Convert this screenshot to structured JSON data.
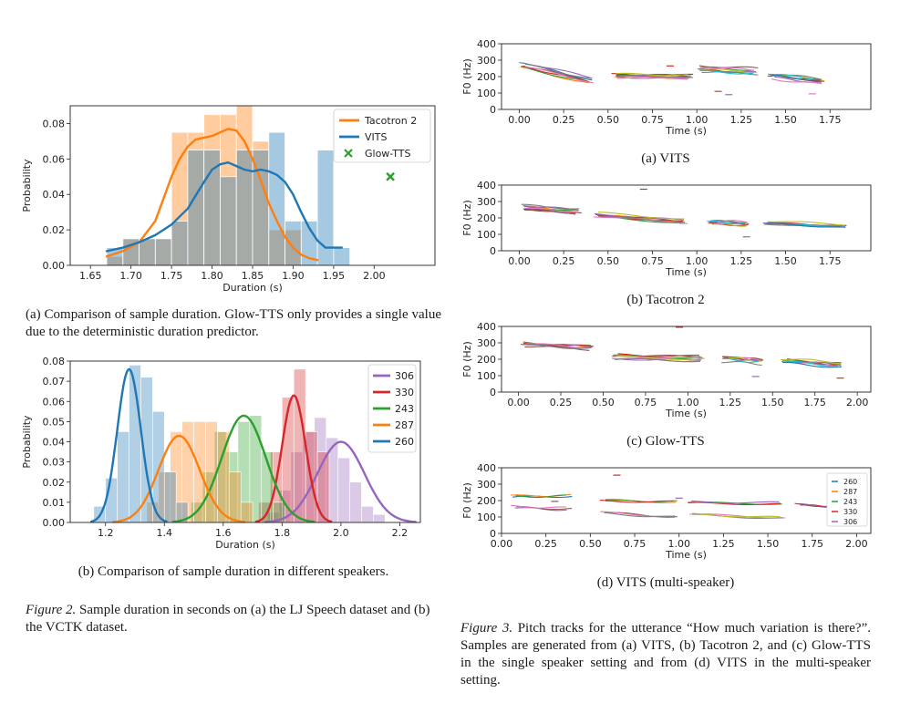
{
  "captions": {
    "fig2a": "(a) Comparison of sample duration.  Glow-TTS only provides a single value due to the deterministic duration predictor.",
    "fig2b": "(b) Comparison of sample duration in different speakers.",
    "fig2_label": "Figure 2.",
    "fig2_text": " Sample duration in seconds on (a) the LJ Speech dataset and (b) the VCTK dataset.",
    "fig3a": "(a) VITS",
    "fig3b": "(b) Tacotron 2",
    "fig3c": "(c) Glow-TTS",
    "fig3d": "(d) VITS (multi-speaker)",
    "fig3_label": "Figure 3.",
    "fig3_text": " Pitch tracks for the utterance “How much variation is there?”. Samples are generated from (a) VITS, (b) Tacotron 2, and (c) Glow-TTS in the single speaker setting and from (d) VITS in the multi-speaker setting."
  },
  "chart_data": [
    {
      "id": "fig2a",
      "type": "bar",
      "xlabel": "Duration (s)",
      "ylabel": "Probability",
      "xlim": [
        1.625,
        2.075
      ],
      "ylim": [
        0,
        0.09
      ],
      "xticks": [
        1.65,
        1.7,
        1.75,
        1.8,
        1.85,
        1.9,
        1.95,
        2.0
      ],
      "xtick_labels": [
        "1.65",
        "1.70",
        "1.75",
        "1.80",
        "1.85",
        "1.90",
        "1.95",
        "2.00"
      ],
      "yticks": [
        0,
        0.02,
        0.04,
        0.06,
        0.08
      ],
      "ytick_labels": [
        "0.00",
        "0.02",
        "0.04",
        "0.06",
        "0.08"
      ],
      "legend_position": "top-right",
      "bin_edges": [
        1.67,
        1.69,
        1.71,
        1.73,
        1.75,
        1.77,
        1.79,
        1.81,
        1.83,
        1.85,
        1.87,
        1.89,
        1.91,
        1.93,
        1.95,
        1.97
      ],
      "series": [
        {
          "name": "Tacotron 2",
          "color": "#ff7f0e",
          "hist": [
            0.005,
            0.015,
            0.015,
            0.015,
            0.075,
            0.075,
            0.085,
            0.085,
            0.09,
            0.07,
            0.02,
            0.02,
            0.0,
            0.0,
            0.0
          ],
          "kde_x": [
            1.67,
            1.69,
            1.71,
            1.73,
            1.75,
            1.76,
            1.77,
            1.78,
            1.79,
            1.8,
            1.81,
            1.82,
            1.83,
            1.84,
            1.85,
            1.86,
            1.87,
            1.88,
            1.89,
            1.9,
            1.91,
            1.92,
            1.93
          ],
          "kde_y": [
            0.005,
            0.008,
            0.013,
            0.025,
            0.05,
            0.06,
            0.067,
            0.071,
            0.072,
            0.073,
            0.075,
            0.077,
            0.076,
            0.07,
            0.06,
            0.048,
            0.035,
            0.025,
            0.016,
            0.01,
            0.006,
            0.004,
            0.003
          ]
        },
        {
          "name": "VITS",
          "color": "#1f77b4",
          "hist": [
            0.01,
            0.015,
            0.015,
            0.015,
            0.025,
            0.065,
            0.065,
            0.05,
            0.065,
            0.065,
            0.075,
            0.025,
            0.025,
            0.065,
            0.01
          ],
          "kde_x": [
            1.67,
            1.69,
            1.71,
            1.73,
            1.75,
            1.77,
            1.79,
            1.8,
            1.81,
            1.82,
            1.83,
            1.84,
            1.85,
            1.86,
            1.87,
            1.88,
            1.89,
            1.9,
            1.91,
            1.92,
            1.93,
            1.94,
            1.95,
            1.96
          ],
          "kde_y": [
            0.008,
            0.01,
            0.013,
            0.017,
            0.023,
            0.032,
            0.047,
            0.054,
            0.057,
            0.058,
            0.056,
            0.054,
            0.053,
            0.054,
            0.053,
            0.051,
            0.047,
            0.04,
            0.03,
            0.021,
            0.014,
            0.01,
            0.01,
            0.01
          ]
        },
        {
          "name": "Glow-TTS",
          "color": "#2ca02c",
          "marker": "x",
          "point": [
            2.02,
            0.05
          ]
        }
      ]
    },
    {
      "id": "fig2b",
      "type": "bar",
      "xlabel": "Duration (s)",
      "ylabel": "Probability",
      "xlim": [
        1.08,
        2.27
      ],
      "ylim": [
        0,
        0.08
      ],
      "xticks": [
        1.2,
        1.4,
        1.6,
        1.8,
        2.0,
        2.2
      ],
      "xtick_labels": [
        "1.2",
        "1.4",
        "1.6",
        "1.8",
        "2.0",
        "2.2"
      ],
      "yticks": [
        0,
        0.01,
        0.02,
        0.03,
        0.04,
        0.05,
        0.06,
        0.07,
        0.08
      ],
      "ytick_labels": [
        "0.00",
        "0.01",
        "0.02",
        "0.03",
        "0.04",
        "0.05",
        "0.06",
        "0.07",
        "0.08"
      ],
      "legend_position": "top-right",
      "series": [
        {
          "name": "306",
          "color": "#9467bd",
          "mean": 2.0,
          "sd": 0.08,
          "peak": 0.04,
          "hist_start": 1.75,
          "hist": [
            0.005,
            0.016,
            0.035,
            0.045,
            0.052,
            0.042,
            0.032,
            0.02,
            0.008,
            0.004
          ]
        },
        {
          "name": "330",
          "color": "#d62728",
          "mean": 1.84,
          "sd": 0.04,
          "peak": 0.063,
          "hist_start": 1.72,
          "hist": [
            0.01,
            0.035,
            0.062,
            0.076,
            0.045,
            0.035
          ]
        },
        {
          "name": "243",
          "color": "#2ca02c",
          "mean": 1.67,
          "sd": 0.075,
          "peak": 0.053,
          "hist_start": 1.49,
          "hist": [
            0.01,
            0.025,
            0.045,
            0.035,
            0.05,
            0.053,
            0.035,
            0.01
          ]
        },
        {
          "name": "287",
          "color": "#ff7f0e",
          "mean": 1.45,
          "sd": 0.07,
          "peak": 0.043,
          "hist_start": 1.34,
          "hist": [
            0.01,
            0.025,
            0.045,
            0.05,
            0.05,
            0.05,
            0.045,
            0.025,
            0.01
          ]
        },
        {
          "name": "260",
          "color": "#1f77b4",
          "mean": 1.28,
          "sd": 0.04,
          "peak": 0.076,
          "hist_start": 1.16,
          "hist": [
            0.008,
            0.022,
            0.045,
            0.078,
            0.072,
            0.055,
            0.025,
            0.01
          ]
        }
      ]
    },
    {
      "id": "fig3a",
      "type": "scatter",
      "xlabel": "Time (s)",
      "ylabel": "F0 (Hz)",
      "xlim": [
        -0.1,
        1.98
      ],
      "ylim": [
        0,
        400
      ],
      "xticks": [
        0,
        0.25,
        0.5,
        0.75,
        1.0,
        1.25,
        1.5,
        1.75
      ],
      "xtick_labels": [
        "0.00",
        "0.25",
        "0.50",
        "0.75",
        "1.00",
        "1.25",
        "1.50",
        "1.75"
      ],
      "yticks": [
        0,
        100,
        200,
        300,
        400
      ],
      "ytick_labels": [
        "0",
        "100",
        "200",
        "300",
        "400"
      ],
      "segments": [
        [
          0.0,
          0.42,
          270,
          175
        ],
        [
          0.52,
          0.98,
          200,
          195
        ],
        [
          1.0,
          1.35,
          250,
          235
        ],
        [
          1.4,
          1.72,
          200,
          170
        ]
      ]
    },
    {
      "id": "fig3b",
      "type": "scatter",
      "xlabel": "Time (s)",
      "ylabel": "F0 (Hz)",
      "xlim": [
        -0.1,
        1.98
      ],
      "ylim": [
        0,
        400
      ],
      "xticks": [
        0,
        0.25,
        0.5,
        0.75,
        1.0,
        1.25,
        1.5,
        1.75
      ],
      "xtick_labels": [
        "0.00",
        "0.25",
        "0.50",
        "0.75",
        "1.00",
        "1.25",
        "1.50",
        "1.75"
      ],
      "yticks": [
        0,
        100,
        200,
        300,
        400
      ],
      "ytick_labels": [
        "0",
        "100",
        "200",
        "300",
        "400"
      ],
      "segments": [
        [
          0.0,
          0.35,
          265,
          240
        ],
        [
          0.42,
          0.95,
          220,
          180
        ],
        [
          1.05,
          1.3,
          175,
          165
        ],
        [
          1.37,
          1.85,
          170,
          150
        ]
      ]
    },
    {
      "id": "fig3c",
      "type": "scatter",
      "xlabel": "Time (s)",
      "ylabel": "F0 (Hz)",
      "xlim": [
        -0.1,
        2.08
      ],
      "ylim": [
        0,
        400
      ],
      "xticks": [
        0,
        0.25,
        0.5,
        0.75,
        1.0,
        1.25,
        1.5,
        1.75,
        2.0
      ],
      "xtick_labels": [
        "0.00",
        "0.25",
        "0.50",
        "0.75",
        "1.00",
        "1.25",
        "1.50",
        "1.75",
        "2.00"
      ],
      "yticks": [
        0,
        100,
        200,
        300,
        400
      ],
      "ytick_labels": [
        "0",
        "100",
        "200",
        "300",
        "400"
      ],
      "segments": [
        [
          0.0,
          0.45,
          285,
          265
        ],
        [
          0.55,
          1.1,
          215,
          205
        ],
        [
          1.2,
          1.45,
          200,
          185
        ],
        [
          1.55,
          1.92,
          190,
          165
        ]
      ]
    },
    {
      "id": "fig3d",
      "type": "scatter",
      "xlabel": "Time (s)",
      "ylabel": "F0 (Hz)",
      "xlim": [
        0,
        2.08
      ],
      "ylim": [
        0,
        400
      ],
      "xticks": [
        0,
        0.25,
        0.5,
        0.75,
        1.0,
        1.25,
        1.5,
        1.75,
        2.0
      ],
      "xtick_labels": [
        "0.00",
        "0.25",
        "0.50",
        "0.75",
        "1.00",
        "1.25",
        "1.50",
        "1.75",
        "2.00"
      ],
      "yticks": [
        0,
        100,
        200,
        300,
        400
      ],
      "ytick_labels": [
        "0",
        "100",
        "200",
        "300",
        "400"
      ],
      "legend_position": "top-right",
      "legend": [
        "260",
        "287",
        "243",
        "330",
        "306"
      ],
      "segments": [
        [
          0.05,
          0.4,
          225,
          230
        ],
        [
          0.55,
          1.0,
          195,
          190
        ],
        [
          1.05,
          1.6,
          190,
          185
        ],
        [
          1.65,
          1.95,
          175,
          160
        ],
        [
          0.05,
          0.4,
          160,
          150
        ],
        [
          0.55,
          1.0,
          120,
          95
        ],
        [
          1.05,
          1.6,
          110,
          90
        ]
      ]
    }
  ]
}
